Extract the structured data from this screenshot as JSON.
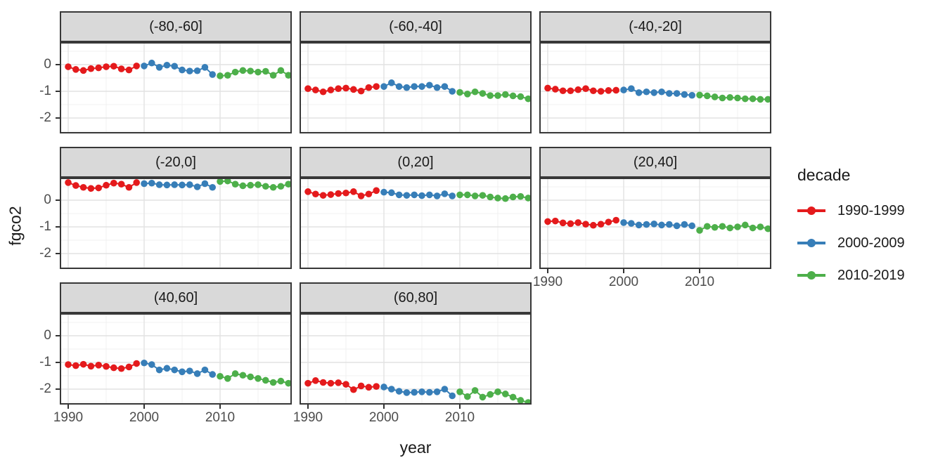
{
  "chart_data": {
    "type": "scatter",
    "title": "",
    "xlabel": "year",
    "ylabel": "fgco2",
    "grid": "on",
    "x_axis": {
      "ticks": [
        1990,
        2000,
        2010
      ],
      "tick_labels": [
        "1990",
        "2000",
        "2010"
      ],
      "minor_ticks": [
        1995,
        2005,
        2015
      ],
      "lim": [
        1989,
        2019.5
      ]
    },
    "y_axis": {
      "ticks": [
        0,
        -1,
        -2
      ],
      "tick_labels": [
        "0",
        "-1",
        "-2"
      ],
      "minor_ticks": [
        0.5,
        -0.5,
        -1.5,
        -2.5
      ],
      "lim": [
        -2.55,
        0.85
      ]
    },
    "legend": {
      "title": "decade",
      "position": "right",
      "entries": [
        {
          "label": "1990-1999",
          "color": "#E41A1C",
          "start_year": 1990
        },
        {
          "label": "2000-2009",
          "color": "#377EB8",
          "start_year": 2000
        },
        {
          "label": "2010-2019",
          "color": "#4DAF4A",
          "start_year": 2010
        }
      ]
    },
    "facets": [
      {
        "label": "(-80,-60]",
        "row": 0,
        "col": 0,
        "show_x_axis": false,
        "show_y_axis": true,
        "series": [
          {
            "name": "1990-1999",
            "values": [
              -0.08,
              -0.18,
              -0.22,
              -0.15,
              -0.12,
              -0.08,
              -0.06,
              -0.16,
              -0.2,
              -0.05
            ]
          },
          {
            "name": "2000-2009",
            "values": [
              -0.05,
              0.06,
              -0.1,
              -0.02,
              -0.06,
              -0.2,
              -0.24,
              -0.23,
              -0.1,
              -0.37
            ]
          },
          {
            "name": "2010-2019",
            "values": [
              -0.42,
              -0.4,
              -0.28,
              -0.22,
              -0.24,
              -0.28,
              -0.25,
              -0.4,
              -0.22,
              -0.4
            ]
          }
        ]
      },
      {
        "label": "(-60,-40]",
        "row": 0,
        "col": 1,
        "show_x_axis": false,
        "show_y_axis": false,
        "series": [
          {
            "name": "1990-1999",
            "values": [
              -0.9,
              -0.95,
              -1.02,
              -0.95,
              -0.9,
              -0.88,
              -0.93,
              -0.99,
              -0.86,
              -0.82
            ]
          },
          {
            "name": "2000-2009",
            "values": [
              -0.82,
              -0.68,
              -0.82,
              -0.86,
              -0.82,
              -0.82,
              -0.77,
              -0.86,
              -0.82,
              -1.0
            ]
          },
          {
            "name": "2010-2019",
            "values": [
              -1.04,
              -1.1,
              -1.02,
              -1.08,
              -1.16,
              -1.16,
              -1.12,
              -1.17,
              -1.2,
              -1.28
            ]
          }
        ]
      },
      {
        "label": "(-40,-20]",
        "row": 0,
        "col": 2,
        "show_x_axis": false,
        "show_y_axis": false,
        "series": [
          {
            "name": "1990-1999",
            "values": [
              -0.88,
              -0.92,
              -0.98,
              -0.98,
              -0.94,
              -0.9,
              -0.98,
              -1.0,
              -0.97,
              -0.96
            ]
          },
          {
            "name": "2000-2009",
            "values": [
              -0.95,
              -0.9,
              -1.05,
              -1.02,
              -1.05,
              -1.02,
              -1.08,
              -1.08,
              -1.12,
              -1.15
            ]
          },
          {
            "name": "2010-2019",
            "values": [
              -1.14,
              -1.17,
              -1.21,
              -1.25,
              -1.23,
              -1.25,
              -1.28,
              -1.28,
              -1.3,
              -1.3
            ]
          }
        ]
      },
      {
        "label": "(-20,0]",
        "row": 1,
        "col": 0,
        "show_x_axis": false,
        "show_y_axis": true,
        "series": [
          {
            "name": "1990-1999",
            "values": [
              0.66,
              0.55,
              0.48,
              0.44,
              0.46,
              0.56,
              0.64,
              0.6,
              0.48,
              0.66
            ]
          },
          {
            "name": "2000-2009",
            "values": [
              0.62,
              0.64,
              0.58,
              0.57,
              0.58,
              0.57,
              0.58,
              0.5,
              0.62,
              0.48
            ]
          },
          {
            "name": "2010-2019",
            "values": [
              0.7,
              0.72,
              0.6,
              0.54,
              0.56,
              0.58,
              0.52,
              0.48,
              0.52,
              0.6
            ]
          }
        ]
      },
      {
        "label": "(0,20]",
        "row": 1,
        "col": 1,
        "show_x_axis": false,
        "show_y_axis": false,
        "series": [
          {
            "name": "1990-1999",
            "values": [
              0.32,
              0.23,
              0.18,
              0.21,
              0.25,
              0.27,
              0.32,
              0.16,
              0.23,
              0.36
            ]
          },
          {
            "name": "2000-2009",
            "values": [
              0.3,
              0.28,
              0.2,
              0.18,
              0.2,
              0.17,
              0.2,
              0.16,
              0.24,
              0.16
            ]
          },
          {
            "name": "2010-2019",
            "values": [
              0.2,
              0.2,
              0.16,
              0.18,
              0.12,
              0.08,
              0.06,
              0.12,
              0.14,
              0.08
            ]
          }
        ]
      },
      {
        "label": "(20,40]",
        "row": 1,
        "col": 2,
        "show_x_axis": true,
        "show_y_axis": false,
        "series": [
          {
            "name": "1990-1999",
            "values": [
              -0.8,
              -0.78,
              -0.85,
              -0.88,
              -0.84,
              -0.9,
              -0.94,
              -0.9,
              -0.82,
              -0.75
            ]
          },
          {
            "name": "2000-2009",
            "values": [
              -0.84,
              -0.87,
              -0.93,
              -0.91,
              -0.89,
              -0.93,
              -0.91,
              -0.96,
              -0.91,
              -0.96
            ]
          },
          {
            "name": "2010-2019",
            "values": [
              -1.13,
              -0.98,
              -1.02,
              -0.98,
              -1.04,
              -1.0,
              -0.93,
              -1.04,
              -1.0,
              -1.07
            ]
          }
        ]
      },
      {
        "label": "(40,60]",
        "row": 2,
        "col": 0,
        "show_x_axis": true,
        "show_y_axis": true,
        "series": [
          {
            "name": "1990-1999",
            "values": [
              -1.08,
              -1.12,
              -1.07,
              -1.14,
              -1.1,
              -1.15,
              -1.2,
              -1.23,
              -1.17,
              -1.04
            ]
          },
          {
            "name": "2000-2009",
            "values": [
              -1.02,
              -1.08,
              -1.28,
              -1.22,
              -1.28,
              -1.35,
              -1.32,
              -1.42,
              -1.28,
              -1.45
            ]
          },
          {
            "name": "2010-2019",
            "values": [
              -1.52,
              -1.6,
              -1.42,
              -1.48,
              -1.54,
              -1.6,
              -1.67,
              -1.75,
              -1.7,
              -1.78
            ]
          }
        ]
      },
      {
        "label": "(60,80]",
        "row": 2,
        "col": 1,
        "show_x_axis": true,
        "show_y_axis": false,
        "series": [
          {
            "name": "1990-1999",
            "values": [
              -1.78,
              -1.68,
              -1.75,
              -1.78,
              -1.76,
              -1.82,
              -2.02,
              -1.88,
              -1.93,
              -1.9
            ]
          },
          {
            "name": "2000-2009",
            "values": [
              -1.92,
              -2.0,
              -2.08,
              -2.13,
              -2.12,
              -2.1,
              -2.12,
              -2.1,
              -2.0,
              -2.25
            ]
          },
          {
            "name": "2010-2019",
            "values": [
              -2.1,
              -2.28,
              -2.05,
              -2.3,
              -2.2,
              -2.1,
              -2.18,
              -2.3,
              -2.42,
              -2.5
            ]
          }
        ]
      }
    ],
    "style": {
      "strip_fill": "#D9D9D9",
      "border_color": "#383838",
      "major_grid_color": "#E2E2E2",
      "minor_grid_color": "#F0F0F0",
      "tick_label_color": "#4d4d4d",
      "point_radius": 4.8
    }
  }
}
